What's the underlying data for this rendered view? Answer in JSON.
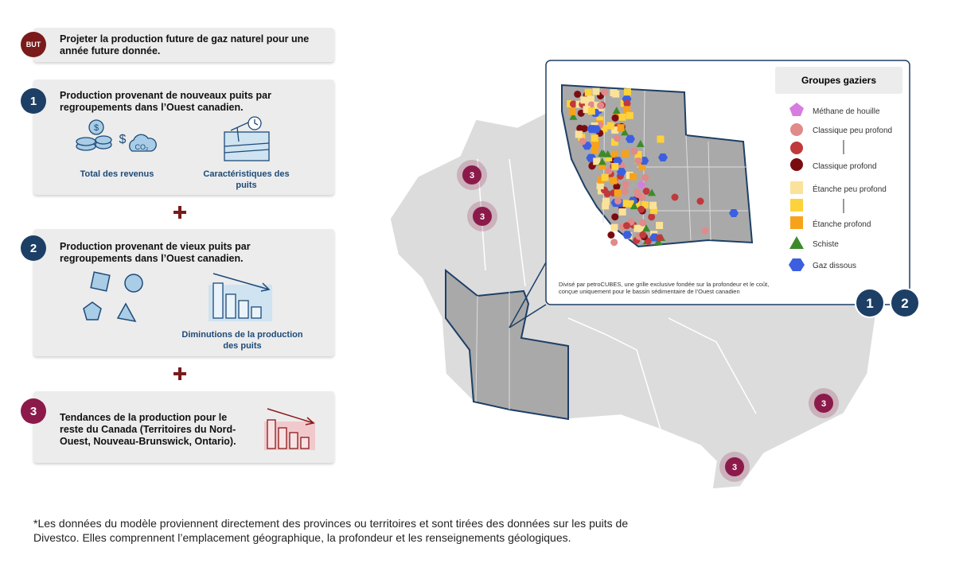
{
  "goal": {
    "badge": "BUT",
    "text": "Projeter la production future de gaz naturel pour une année future donnée."
  },
  "steps": [
    {
      "badge": "1",
      "title": "Production provenant de nouveaux puits par regroupements dans l’Ouest canadien.",
      "items": [
        "Total des revenus",
        "Caractéristiques des puits"
      ],
      "icon_texts": [
        "$",
        "$",
        "CO₂"
      ]
    },
    {
      "badge": "2",
      "title": "Production provenant de vieux puits par regroupements dans l’Ouest canadien.",
      "items": [
        "Diminutions de la production des puits"
      ]
    },
    {
      "badge": "3",
      "title": "Tendances de la production pour le reste du Canada (Territoires du Nord-Ouest, Nouveau-Brunswick, Ontario)."
    }
  ],
  "map": {
    "markers": [
      "3",
      "3",
      "3",
      "3",
      "1",
      "2"
    ],
    "legend": {
      "title": "Groupes gaziers",
      "items": [
        "Méthane de houille",
        "Classique peu profond",
        "Classique profond",
        "Étanche peu profond",
        "Étanche profond",
        "Schiste",
        "Gaz dissous"
      ]
    },
    "note": "Divisé par petroCUBES, une grille exclusive fondée sur la profondeur et le coût, conçue uniquement pour le bassin sédimentaire de l’Ouest canadien"
  },
  "footnote": "*Les données du modèle proviennent directement des provinces ou territoires et sont tirées des données sur les puits de Divestco. Elles comprennent l’emplacement géographique, la profondeur et les renseignements géologiques."
}
